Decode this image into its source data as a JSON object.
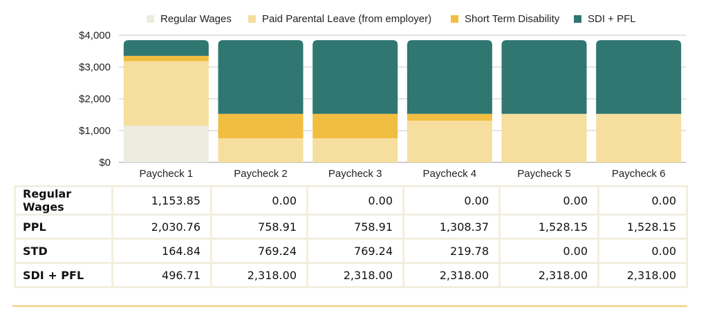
{
  "chart_data": {
    "type": "bar",
    "stacked": true,
    "categories": [
      "Paycheck 1",
      "Paycheck 2",
      "Paycheck 3",
      "Paycheck 4",
      "Paycheck 5",
      "Paycheck 6"
    ],
    "series": [
      {
        "name": "Regular Wages",
        "color": "#edecdf",
        "values": [
          1153.85,
          0,
          0,
          0,
          0,
          0
        ]
      },
      {
        "name": "Paid Parental Leave (from employer)",
        "color": "#f6de9e",
        "values": [
          2030.76,
          758.91,
          758.91,
          1308.37,
          1528.15,
          1528.15
        ]
      },
      {
        "name": "Short Term Disability",
        "color": "#f2be42",
        "values": [
          164.84,
          769.24,
          769.24,
          219.78,
          0,
          0
        ]
      },
      {
        "name": "SDI + PFL",
        "color": "#307671",
        "values": [
          496.71,
          2318.0,
          2318.0,
          2318.0,
          2318.0,
          2318.0
        ]
      }
    ],
    "ylim": [
      0,
      4000
    ],
    "yticks": [
      0,
      1000,
      2000,
      3000,
      4000
    ],
    "ytick_labels": [
      "$0",
      "$1,000",
      "$2,000",
      "$3,000",
      "$4,000"
    ],
    "legend_position": "top",
    "grid": true
  },
  "table": {
    "rows": [
      {
        "label": "Regular Wages",
        "values": [
          "1,153.85",
          "0.00",
          "0.00",
          "0.00",
          "0.00",
          "0.00"
        ]
      },
      {
        "label": "PPL",
        "values": [
          "2,030.76",
          "758.91",
          "758.91",
          "1,308.37",
          "1,528.15",
          "1,528.15"
        ]
      },
      {
        "label": "STD",
        "values": [
          "164.84",
          "769.24",
          "769.24",
          "219.78",
          "0.00",
          "0.00"
        ]
      },
      {
        "label": "SDI + PFL",
        "values": [
          "496.71",
          "2,318.00",
          "2,318.00",
          "2,318.00",
          "2,318.00",
          "2,318.00"
        ]
      }
    ]
  }
}
